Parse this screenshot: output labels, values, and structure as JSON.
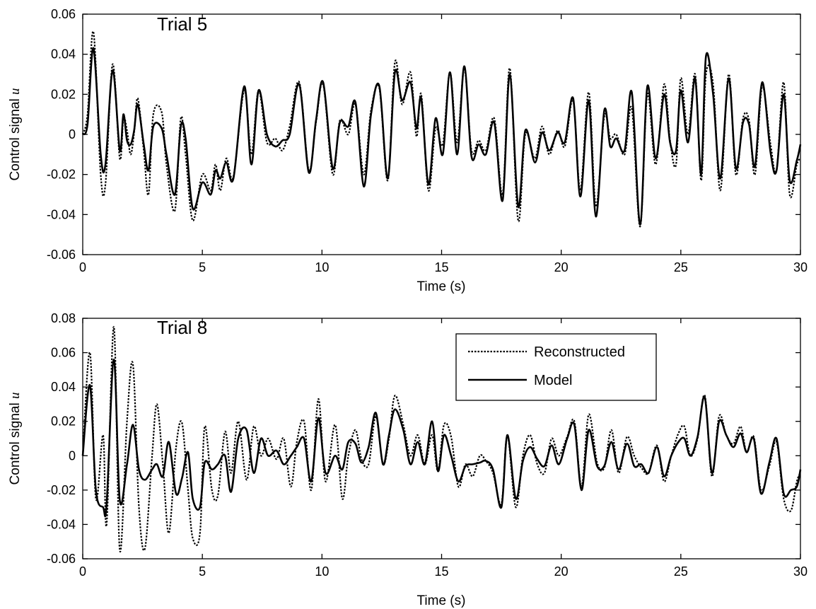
{
  "chart_data": [
    {
      "type": "line",
      "annotation": "Trial 5",
      "xlabel": "Time (s)",
      "ylabel": "Control signal",
      "ylabel_symbol": "u",
      "xlim": [
        0,
        30
      ],
      "ylim": [
        -0.06,
        0.06
      ],
      "xticks": [
        0,
        5,
        10,
        15,
        20,
        25,
        30
      ],
      "yticks": [
        -0.06,
        -0.04,
        -0.02,
        0,
        0.02,
        0.04,
        0.06
      ],
      "ytick_labels": [
        "-0.06",
        "-0.04",
        "-0.02",
        "0",
        "0.02",
        "0.04",
        "0.06"
      ],
      "series": [
        {
          "name": "Reconstructed",
          "style": "dotted",
          "x": [
            0,
            0.2,
            0.45,
            0.75,
            0.95,
            1.25,
            1.55,
            1.7,
            1.85,
            2.0,
            2.15,
            2.3,
            2.55,
            2.75,
            2.95,
            3.3,
            3.5,
            3.85,
            4.1,
            4.3,
            4.6,
            5.0,
            5.35,
            5.55,
            5.75,
            6.0,
            6.3,
            6.75,
            7.05,
            7.35,
            7.7,
            8.05,
            8.35,
            8.65,
            9.05,
            9.45,
            9.75,
            10.05,
            10.45,
            10.75,
            11.1,
            11.4,
            11.75,
            12.05,
            12.4,
            12.75,
            13.05,
            13.35,
            13.7,
            13.95,
            14.15,
            14.45,
            14.75,
            15.05,
            15.35,
            15.65,
            15.95,
            16.25,
            16.55,
            16.85,
            17.2,
            17.55,
            17.85,
            18.2,
            18.5,
            18.9,
            19.2,
            19.5,
            19.85,
            20.15,
            20.5,
            20.8,
            21.15,
            21.45,
            21.8,
            22.05,
            22.3,
            22.65,
            22.95,
            23.3,
            23.6,
            23.95,
            24.3,
            24.55,
            24.8,
            25.0,
            25.3,
            25.6,
            25.85,
            26.05,
            26.35,
            26.65,
            27.0,
            27.3,
            27.6,
            27.85,
            28.1,
            28.4,
            28.75,
            29.0,
            29.3,
            29.55,
            29.85,
            30.0
          ],
          "y": [
            0.0,
            0.01,
            0.051,
            -0.02,
            -0.025,
            0.035,
            -0.012,
            0.008,
            0.002,
            -0.01,
            0.001,
            0.018,
            -0.008,
            -0.03,
            0.01,
            0.011,
            -0.015,
            -0.038,
            0.008,
            -0.01,
            -0.043,
            -0.02,
            -0.028,
            -0.015,
            -0.028,
            -0.012,
            -0.021,
            0.022,
            -0.01,
            0.022,
            -0.004,
            -0.002,
            -0.008,
            0.004,
            0.026,
            -0.018,
            0.006,
            0.025,
            -0.02,
            0.007,
            0.0,
            0.015,
            -0.02,
            0.012,
            0.023,
            -0.023,
            0.036,
            0.015,
            0.031,
            -0.001,
            0.02,
            -0.028,
            0.003,
            -0.005,
            0.031,
            -0.004,
            0.033,
            -0.008,
            -0.003,
            -0.008,
            0.008,
            -0.03,
            0.033,
            -0.043,
            0.0,
            -0.012,
            0.004,
            -0.01,
            0.002,
            -0.006,
            0.017,
            -0.028,
            0.021,
            -0.036,
            0.009,
            -0.002,
            0.0,
            -0.01,
            0.013,
            -0.046,
            0.02,
            -0.015,
            0.025,
            -0.003,
            -0.015,
            0.028,
            0.0,
            0.03,
            -0.023,
            0.03,
            0.025,
            -0.028,
            0.03,
            -0.02,
            0.008,
            0.007,
            -0.02,
            0.024,
            -0.005,
            -0.018,
            0.026,
            -0.03,
            -0.015,
            -0.012
          ]
        },
        {
          "name": "Model",
          "style": "solid",
          "x": [
            0,
            0.2,
            0.45,
            0.75,
            0.95,
            1.25,
            1.55,
            1.7,
            1.85,
            2.0,
            2.15,
            2.3,
            2.55,
            2.75,
            2.95,
            3.3,
            3.5,
            3.85,
            4.1,
            4.3,
            4.6,
            5.0,
            5.35,
            5.55,
            5.75,
            6.0,
            6.3,
            6.75,
            7.05,
            7.35,
            7.7,
            8.05,
            8.35,
            8.65,
            9.05,
            9.45,
            9.75,
            10.05,
            10.45,
            10.75,
            11.1,
            11.4,
            11.75,
            12.05,
            12.4,
            12.75,
            13.05,
            13.35,
            13.7,
            13.95,
            14.15,
            14.45,
            14.75,
            15.05,
            15.35,
            15.65,
            15.95,
            16.25,
            16.55,
            16.85,
            17.2,
            17.55,
            17.85,
            18.2,
            18.5,
            18.9,
            19.2,
            19.5,
            19.85,
            20.15,
            20.5,
            20.8,
            21.15,
            21.45,
            21.8,
            22.05,
            22.3,
            22.65,
            22.95,
            23.3,
            23.6,
            23.95,
            24.3,
            24.55,
            24.8,
            25.0,
            25.3,
            25.6,
            25.85,
            26.05,
            26.35,
            26.65,
            27.0,
            27.3,
            27.6,
            27.85,
            28.1,
            28.4,
            28.75,
            29.0,
            29.3,
            29.55,
            29.85,
            30.0
          ],
          "y": [
            0.0,
            0.005,
            0.043,
            -0.01,
            -0.015,
            0.032,
            -0.008,
            0.01,
            -0.003,
            -0.005,
            0.002,
            0.015,
            -0.005,
            -0.018,
            0.004,
            0.003,
            -0.01,
            -0.03,
            0.004,
            -0.002,
            -0.037,
            -0.024,
            -0.03,
            -0.018,
            -0.022,
            -0.014,
            -0.022,
            0.024,
            -0.015,
            0.022,
            0.0,
            -0.006,
            -0.003,
            0.0,
            0.025,
            -0.019,
            0.007,
            0.026,
            -0.017,
            0.006,
            0.004,
            0.016,
            -0.026,
            0.01,
            0.024,
            -0.022,
            0.031,
            0.017,
            0.026,
            0.003,
            0.018,
            -0.025,
            0.008,
            -0.01,
            0.031,
            -0.01,
            0.034,
            -0.011,
            -0.005,
            -0.01,
            0.006,
            -0.033,
            0.03,
            -0.036,
            0.002,
            -0.014,
            0.001,
            -0.008,
            0.001,
            -0.004,
            0.018,
            -0.031,
            0.017,
            -0.041,
            0.012,
            -0.006,
            -0.002,
            -0.008,
            0.021,
            -0.045,
            0.024,
            -0.012,
            0.02,
            -0.004,
            -0.008,
            0.022,
            -0.004,
            0.028,
            -0.02,
            0.039,
            0.02,
            -0.022,
            0.028,
            -0.017,
            0.006,
            0.005,
            -0.016,
            0.026,
            -0.009,
            -0.018,
            0.02,
            -0.023,
            -0.013,
            -0.005
          ]
        }
      ]
    },
    {
      "type": "line",
      "annotation": "Trial 8",
      "xlabel": "Time (s)",
      "ylabel": "Control signal",
      "ylabel_symbol": "u",
      "xlim": [
        0,
        30
      ],
      "ylim": [
        -0.06,
        0.08
      ],
      "xticks": [
        0,
        5,
        10,
        15,
        20,
        25,
        30
      ],
      "yticks": [
        -0.06,
        -0.04,
        -0.02,
        0,
        0.02,
        0.04,
        0.06,
        0.08
      ],
      "ytick_labels": [
        "-0.06",
        "-0.04",
        "-0.02",
        "0",
        "0.02",
        "0.04",
        "0.06",
        "0.08"
      ],
      "legend": {
        "placement": "top-right",
        "entries": [
          {
            "name": "Reconstructed",
            "style": "dotted"
          },
          {
            "name": "Model",
            "style": "solid"
          }
        ]
      },
      "series": [
        {
          "name": "Reconstructed",
          "style": "dotted",
          "x": [
            0,
            0.3,
            0.55,
            0.85,
            1.0,
            1.3,
            1.55,
            1.85,
            2.1,
            2.35,
            2.6,
            2.9,
            3.1,
            3.35,
            3.6,
            3.9,
            4.15,
            4.4,
            4.6,
            4.9,
            5.1,
            5.4,
            5.65,
            5.95,
            6.2,
            6.5,
            6.85,
            7.15,
            7.45,
            7.75,
            8.1,
            8.4,
            8.7,
            8.95,
            9.25,
            9.55,
            9.85,
            10.15,
            10.55,
            10.85,
            11.1,
            11.4,
            11.65,
            11.95,
            12.25,
            12.55,
            12.8,
            13.05,
            13.4,
            13.7,
            14.0,
            14.3,
            14.6,
            14.85,
            15.1,
            15.4,
            15.7,
            16.0,
            16.3,
            16.6,
            16.85,
            17.15,
            17.5,
            17.75,
            18.1,
            18.4,
            18.7,
            19.0,
            19.3,
            19.6,
            19.9,
            20.25,
            20.55,
            20.85,
            21.15,
            21.5,
            21.8,
            22.1,
            22.4,
            22.75,
            23.05,
            23.35,
            23.65,
            24.0,
            24.3,
            24.6,
            24.9,
            25.15,
            25.4,
            25.7,
            26.0,
            26.3,
            26.6,
            26.9,
            27.2,
            27.5,
            27.75,
            28.05,
            28.35,
            28.7,
            29.0,
            29.3,
            29.6,
            29.85,
            30.0
          ],
          "y": [
            0.0,
            0.06,
            -0.025,
            0.012,
            -0.04,
            0.075,
            -0.055,
            0.02,
            0.053,
            -0.03,
            -0.054,
            0.0,
            0.03,
            -0.005,
            -0.045,
            0.005,
            0.019,
            -0.02,
            -0.048,
            -0.045,
            0.017,
            -0.02,
            -0.023,
            0.014,
            -0.01,
            0.02,
            -0.014,
            0.017,
            0.0,
            0.01,
            -0.002,
            0.01,
            -0.018,
            0.008,
            0.02,
            -0.02,
            0.033,
            -0.015,
            0.018,
            -0.025,
            0.0,
            0.015,
            -0.002,
            -0.005,
            0.023,
            -0.005,
            0.01,
            0.035,
            0.018,
            0.0,
            0.012,
            -0.005,
            0.012,
            -0.009,
            0.018,
            0.011,
            -0.018,
            -0.005,
            -0.012,
            0.0,
            -0.003,
            -0.01,
            -0.028,
            0.012,
            -0.03,
            0.0,
            0.012,
            -0.005,
            -0.01,
            0.01,
            0.0,
            0.011,
            0.02,
            -0.018,
            0.024,
            -0.004,
            -0.007,
            0.015,
            -0.01,
            0.011,
            0.0,
            -0.007,
            -0.01,
            0.006,
            -0.015,
            0.0,
            0.013,
            0.017,
            0.0,
            0.01,
            0.035,
            -0.012,
            0.023,
            0.012,
            0.007,
            0.017,
            0.002,
            0.011,
            -0.02,
            -0.006,
            0.008,
            -0.025,
            -0.032,
            -0.015,
            -0.01
          ]
        },
        {
          "name": "Model",
          "style": "solid",
          "x": [
            0,
            0.3,
            0.55,
            0.85,
            1.0,
            1.3,
            1.55,
            1.85,
            2.1,
            2.35,
            2.6,
            2.9,
            3.1,
            3.35,
            3.6,
            3.9,
            4.15,
            4.4,
            4.6,
            4.9,
            5.1,
            5.4,
            5.65,
            5.95,
            6.2,
            6.5,
            6.85,
            7.15,
            7.45,
            7.75,
            8.1,
            8.4,
            8.7,
            8.95,
            9.25,
            9.55,
            9.85,
            10.15,
            10.55,
            10.85,
            11.1,
            11.4,
            11.65,
            11.95,
            12.25,
            12.55,
            12.8,
            13.05,
            13.4,
            13.7,
            14.0,
            14.3,
            14.6,
            14.85,
            15.1,
            15.4,
            15.7,
            16.0,
            16.3,
            16.6,
            16.85,
            17.15,
            17.5,
            17.75,
            18.1,
            18.4,
            18.7,
            19.0,
            19.3,
            19.6,
            19.9,
            20.25,
            20.55,
            20.85,
            21.15,
            21.5,
            21.8,
            22.1,
            22.4,
            22.75,
            23.05,
            23.35,
            23.65,
            24.0,
            24.3,
            24.6,
            24.9,
            25.15,
            25.4,
            25.7,
            26.0,
            26.3,
            26.6,
            26.9,
            27.2,
            27.5,
            27.75,
            28.05,
            28.35,
            28.7,
            29.0,
            29.3,
            29.6,
            29.85,
            30.0
          ],
          "y": [
            0.0,
            0.041,
            -0.02,
            -0.03,
            -0.028,
            0.056,
            -0.026,
            -0.005,
            0.018,
            -0.008,
            -0.014,
            -0.008,
            -0.005,
            -0.012,
            0.008,
            -0.022,
            -0.013,
            0.002,
            -0.025,
            -0.03,
            -0.004,
            -0.008,
            -0.005,
            0.0,
            -0.021,
            0.01,
            0.015,
            -0.01,
            0.01,
            0.0,
            0.003,
            -0.005,
            0.0,
            0.005,
            0.01,
            -0.015,
            0.022,
            -0.01,
            0.0,
            -0.008,
            0.008,
            0.007,
            -0.004,
            0.005,
            0.025,
            -0.005,
            0.012,
            0.027,
            0.015,
            -0.005,
            0.008,
            -0.005,
            0.02,
            -0.009,
            0.012,
            0.0,
            -0.015,
            -0.006,
            -0.005,
            -0.004,
            -0.003,
            -0.008,
            -0.03,
            0.012,
            -0.025,
            -0.003,
            0.005,
            -0.002,
            -0.006,
            0.006,
            -0.005,
            0.01,
            0.018,
            -0.02,
            0.015,
            -0.006,
            -0.006,
            0.008,
            -0.008,
            0.007,
            -0.006,
            -0.005,
            -0.01,
            0.005,
            -0.012,
            0.0,
            0.008,
            0.01,
            0.0,
            0.011,
            0.034,
            -0.01,
            0.02,
            0.012,
            0.005,
            0.013,
            0.002,
            0.01,
            -0.022,
            -0.004,
            0.01,
            -0.022,
            -0.02,
            -0.018,
            -0.008
          ]
        }
      ]
    }
  ]
}
